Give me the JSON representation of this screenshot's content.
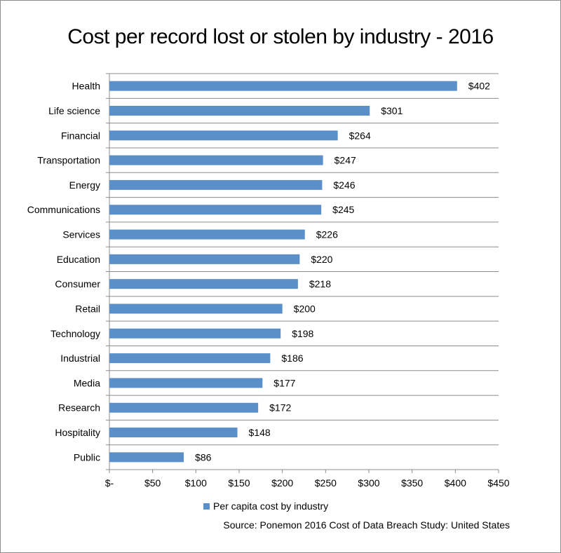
{
  "chart_data": {
    "type": "bar",
    "orientation": "horizontal",
    "title": "Cost per record lost or stolen by industry - 2016",
    "categories": [
      "Health",
      "Life science",
      "Financial",
      "Transportation",
      "Energy",
      "Communications",
      "Services",
      "Education",
      "Consumer",
      "Retail",
      "Technology",
      "Industrial",
      "Media",
      "Research",
      "Hospitality",
      "Public"
    ],
    "series": [
      {
        "name": "Per capita cost by industry",
        "values": [
          402,
          301,
          264,
          247,
          246,
          245,
          226,
          220,
          218,
          200,
          198,
          186,
          177,
          172,
          148,
          86
        ],
        "data_labels": [
          "$402",
          "$301",
          "$264",
          "$247",
          "$246",
          "$245",
          "$226",
          "$220",
          "$218",
          "$200",
          "$198",
          "$186",
          "$177",
          "$172",
          "$148",
          "$86"
        ],
        "color": "#5b8fc9"
      }
    ],
    "xlim": [
      0,
      450
    ],
    "x_ticks": [
      0,
      50,
      100,
      150,
      200,
      250,
      300,
      350,
      400,
      450
    ],
    "x_tick_labels": [
      "$-",
      "$50",
      "$100",
      "$150",
      "$200",
      "$250",
      "$300",
      "$350",
      "$400",
      "$450"
    ],
    "grid": "horizontal",
    "legend_position": "bottom",
    "source": "Source: Ponemon 2016 Cost of Data Breach Study: United States"
  }
}
